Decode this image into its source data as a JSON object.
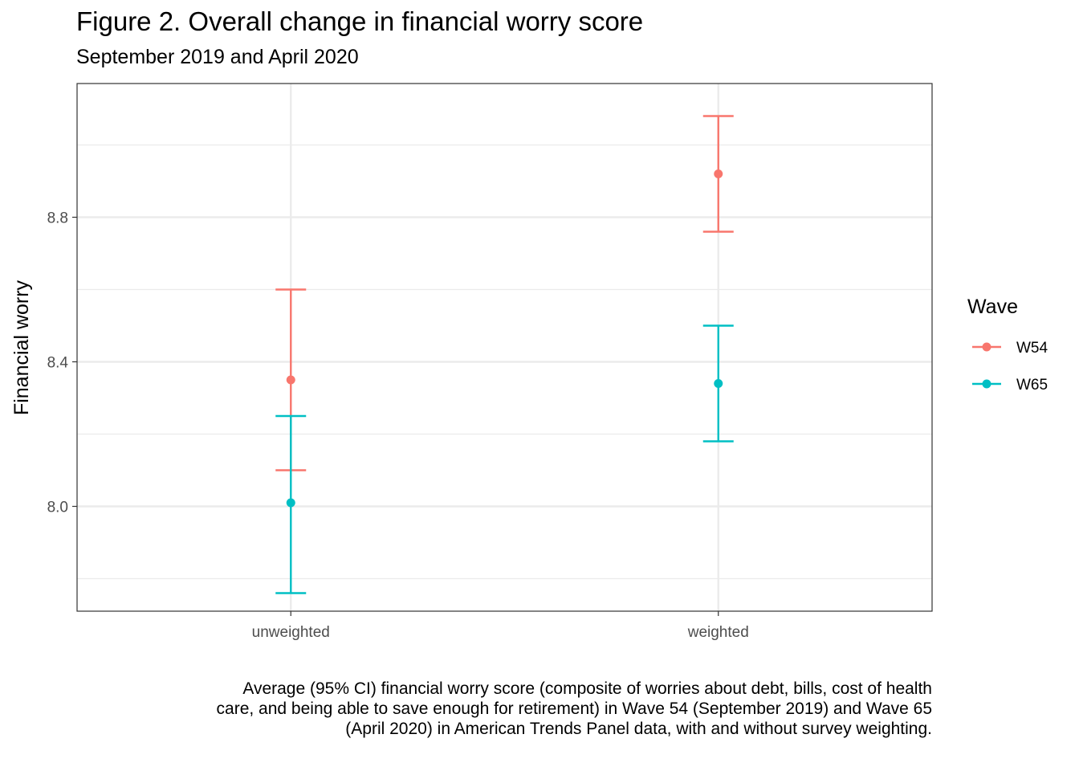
{
  "chart_data": {
    "type": "errorbar",
    "title": "Figure 2. Overall change in financial worry score",
    "subtitle": "September 2019 and April 2020",
    "xlabel": "",
    "ylabel": "Financial worry",
    "categories": [
      "unweighted",
      "weighted"
    ],
    "ylim": [
      7.71,
      9.17
    ],
    "yticks": [
      8.0,
      8.4,
      8.8
    ],
    "ytick_labels": [
      "8.0",
      "8.4",
      "8.8"
    ],
    "grid": true,
    "legend": {
      "title": "Wave",
      "position": "right"
    },
    "series": [
      {
        "name": "W54",
        "color": "#F8766D",
        "values": [
          8.35,
          8.92
        ],
        "lower": [
          8.1,
          8.76
        ],
        "upper": [
          8.6,
          9.08
        ]
      },
      {
        "name": "W65",
        "color": "#00BFC4",
        "values": [
          8.01,
          8.34
        ],
        "lower": [
          7.76,
          8.18
        ],
        "upper": [
          8.25,
          8.5
        ]
      }
    ],
    "caption": "Average (95% CI) financial worry score (composite of worries about debt, bills, cost of health care, and being able to save enough for retirement) in Wave 54 (September 2019) and Wave 65 (April 2020) in American Trends Panel data, with and without survey weighting."
  }
}
